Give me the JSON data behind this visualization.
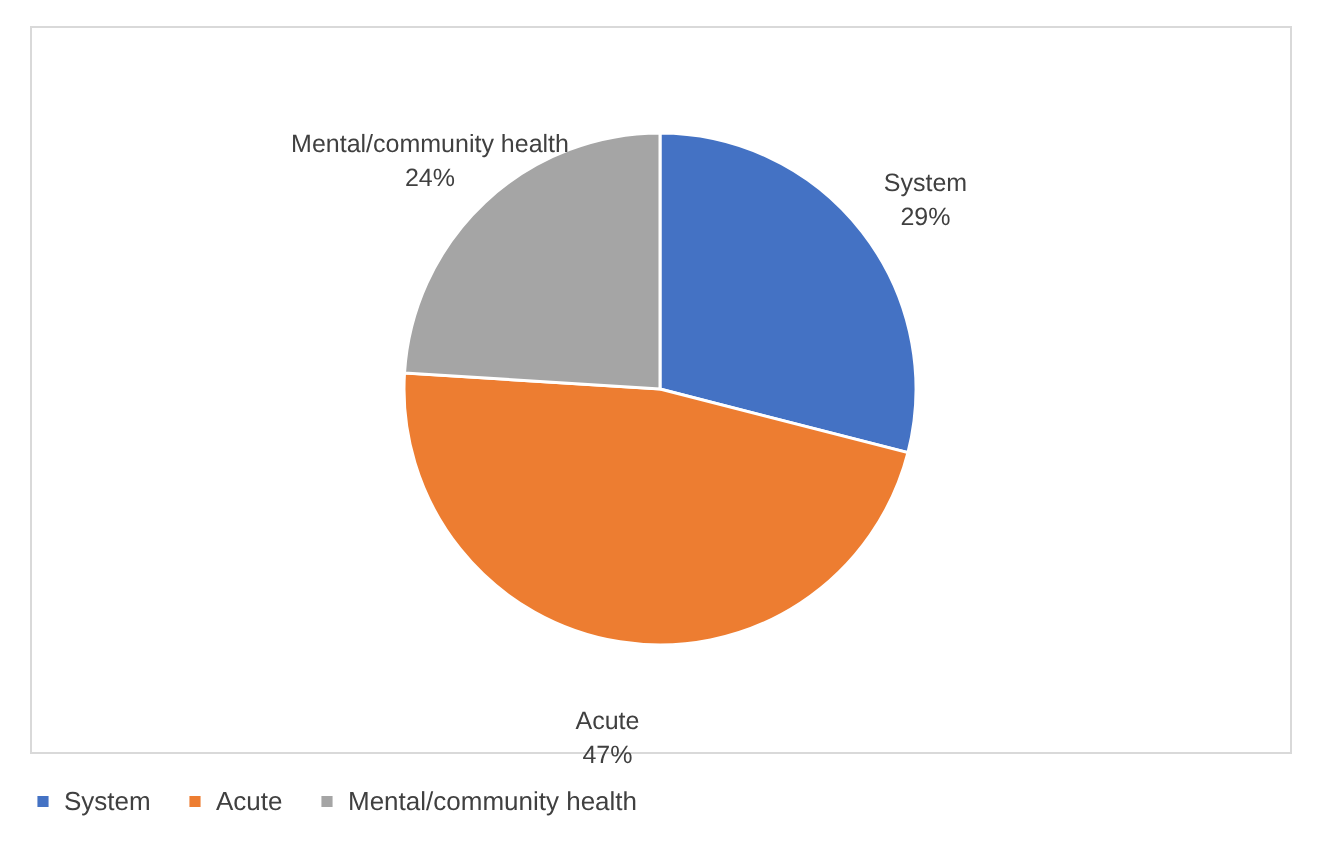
{
  "chart_data": {
    "type": "pie",
    "categories": [
      "System",
      "Acute",
      "Mental/community health"
    ],
    "values": [
      29,
      47,
      24
    ],
    "colors": [
      "#4472c4",
      "#ed7d31",
      "#a5a5a5"
    ],
    "value_labels": [
      "29%",
      "47%",
      "24%"
    ],
    "legend": "bottom"
  }
}
